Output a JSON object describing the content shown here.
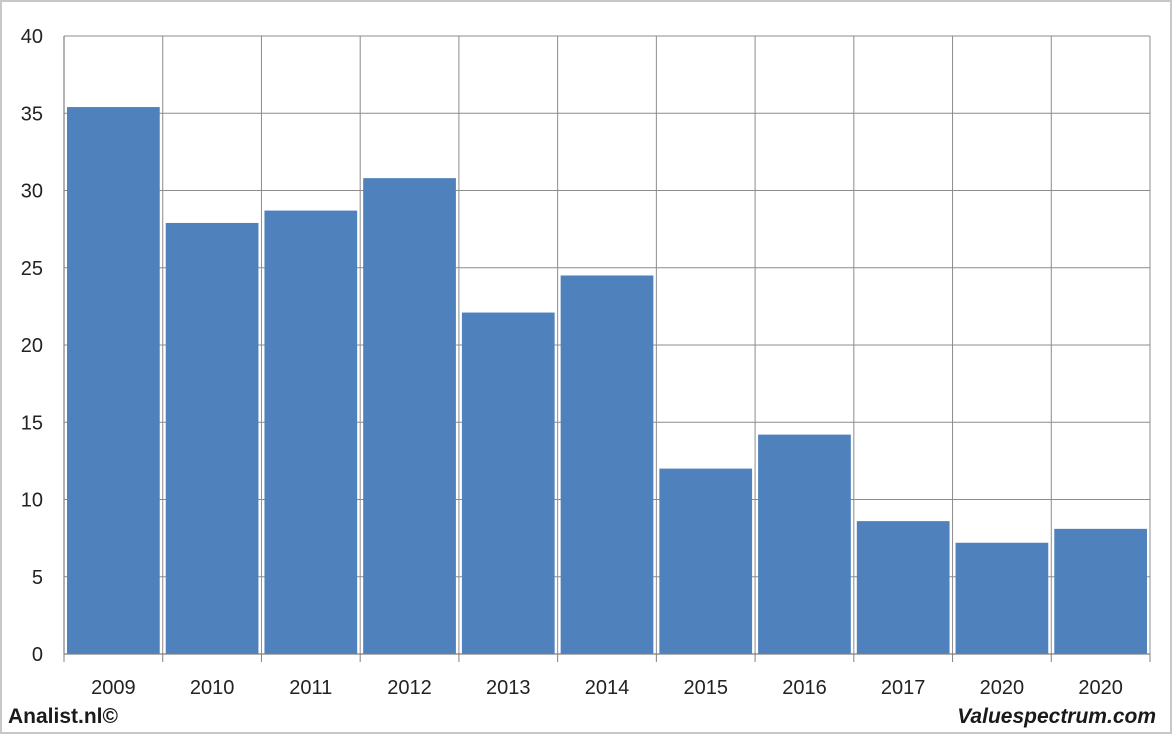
{
  "chart_data": {
    "type": "bar",
    "categories": [
      "2009",
      "2010",
      "2011",
      "2012",
      "2013",
      "2014",
      "2015",
      "2016",
      "2017",
      "2020",
      "2020"
    ],
    "values": [
      35.4,
      27.9,
      28.7,
      30.8,
      22.1,
      24.5,
      12.0,
      14.2,
      8.6,
      7.2,
      8.1
    ],
    "ylim": [
      0,
      40
    ],
    "yticks": [
      0,
      5,
      10,
      15,
      20,
      25,
      30,
      35,
      40
    ],
    "grid": true,
    "bar_color": "#4f81bd",
    "title": "",
    "xlabel": "",
    "ylabel": ""
  },
  "footer": {
    "left": "Analist.nl©",
    "right": "Valuespectrum.com"
  }
}
